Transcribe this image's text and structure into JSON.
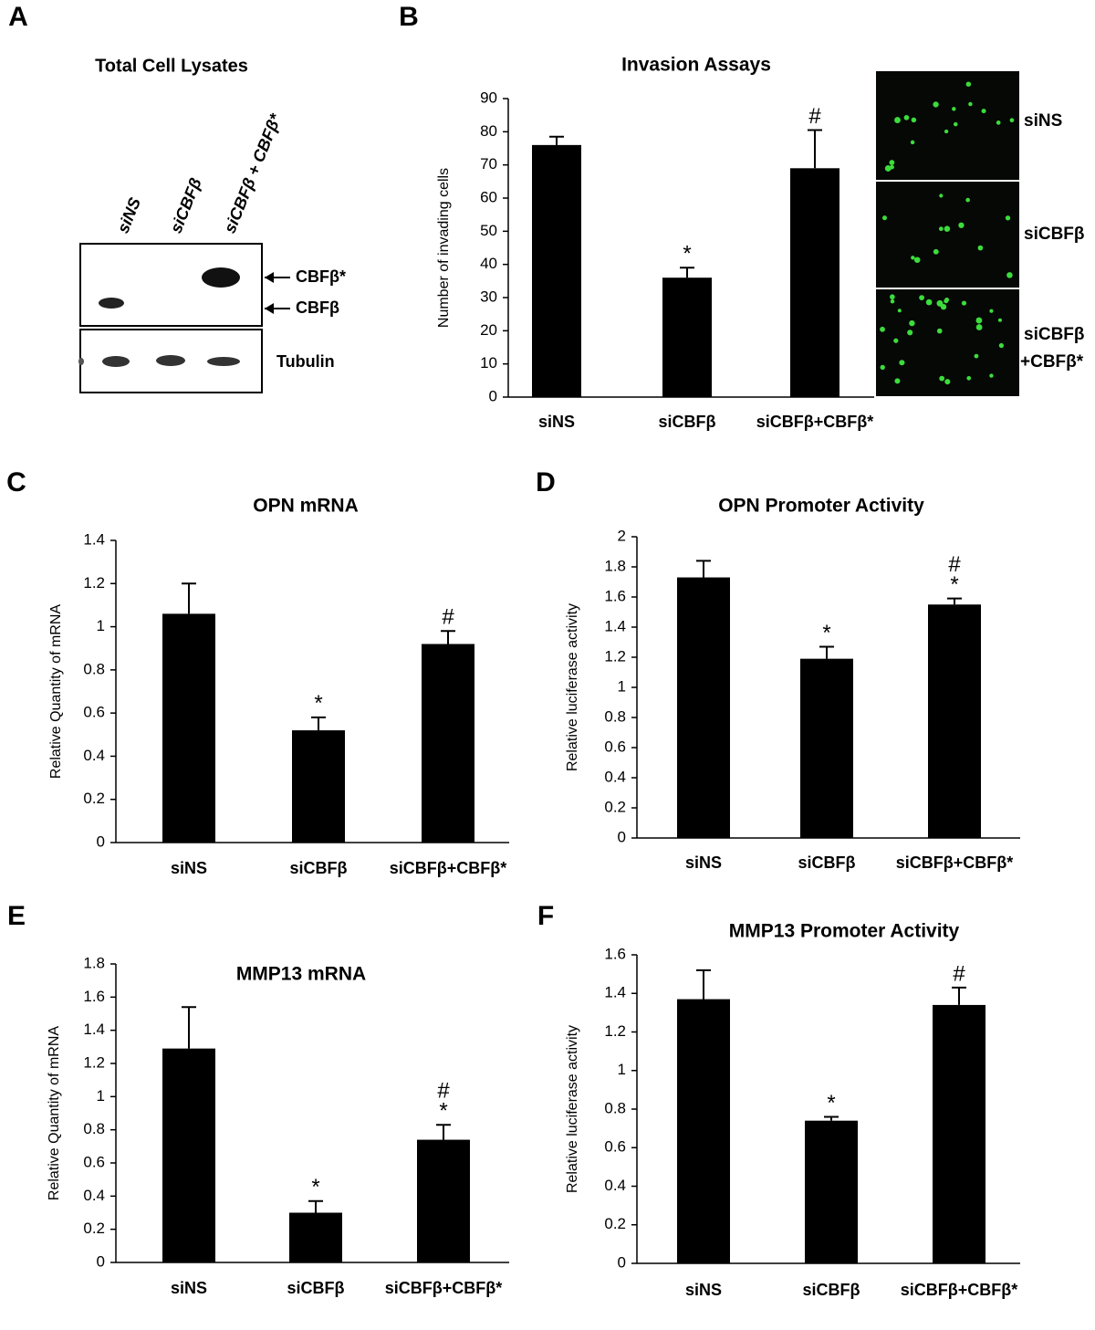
{
  "panel_labels": [
    "A",
    "B",
    "C",
    "D",
    "E",
    "F"
  ],
  "blot": {
    "title": "Total Cell Lysates",
    "lanes": [
      "siNS",
      "siCBFβ",
      "siCBFβ + CBFβ*"
    ],
    "bands": [
      "CBFβ*",
      "CBFβ"
    ],
    "loading_control": "Tubulin"
  },
  "micrographs": {
    "labels": [
      [
        "siNS"
      ],
      [
        "siCBFβ"
      ],
      [
        "siCBFβ",
        "+CBFβ*"
      ]
    ]
  },
  "chart_data": [
    {
      "type": "bar",
      "title": "Invasion Assays",
      "y_label": "Number of invading cells",
      "categories": [
        "siNS",
        "siCBFβ",
        "siCBFβ+CBFβ*"
      ],
      "values": [
        76,
        36,
        69
      ],
      "errors": [
        2.5,
        3,
        11.5
      ],
      "annotations": [
        [],
        [
          "*"
        ],
        [
          "#"
        ]
      ],
      "color": "#000000",
      "ylim": [
        0,
        90
      ],
      "yticks": [
        0,
        10,
        20,
        30,
        40,
        50,
        60,
        70,
        80,
        90
      ]
    },
    {
      "type": "bar",
      "title": "OPN mRNA",
      "y_label": "Relative Quantity of mRNA",
      "categories": [
        "siNS",
        "siCBFβ",
        "siCBFβ+CBFβ*"
      ],
      "values": [
        1.06,
        0.52,
        0.92
      ],
      "errors": [
        0.14,
        0.06,
        0.06
      ],
      "annotations": [
        [],
        [
          "*"
        ],
        [
          "#"
        ]
      ],
      "color": "#000000",
      "ylim": [
        0,
        1.4
      ],
      "yticks": [
        0,
        0.2,
        0.4,
        0.6,
        0.8,
        1,
        1.2,
        1.4
      ]
    },
    {
      "type": "bar",
      "title": "OPN Promoter Activity",
      "y_label": "Relative luciferase activity",
      "categories": [
        "siNS",
        "siCBFβ",
        "siCBFβ+CBFβ*"
      ],
      "values": [
        1.73,
        1.19,
        1.55
      ],
      "errors": [
        0.11,
        0.08,
        0.04
      ],
      "annotations": [
        [],
        [
          "*"
        ],
        [
          "#",
          "*"
        ]
      ],
      "color": "#000000",
      "ylim": [
        0,
        2
      ],
      "yticks": [
        0,
        0.2,
        0.4,
        0.6,
        0.8,
        1,
        1.2,
        1.4,
        1.6,
        1.8,
        2
      ]
    },
    {
      "type": "bar",
      "title": "MMP13 mRNA",
      "y_label": "Relative Quantity of mRNA",
      "categories": [
        "siNS",
        "siCBFβ",
        "siCBFβ+CBFβ*"
      ],
      "values": [
        1.29,
        0.3,
        0.74
      ],
      "errors": [
        0.25,
        0.07,
        0.09
      ],
      "annotations": [
        [],
        [
          "*"
        ],
        [
          "#",
          "*"
        ]
      ],
      "color": "#000000",
      "ylim": [
        0,
        1.8
      ],
      "yticks": [
        0,
        0.2,
        0.4,
        0.6,
        0.8,
        1,
        1.2,
        1.4,
        1.6,
        1.8
      ]
    },
    {
      "type": "bar",
      "title": "MMP13 Promoter Activity",
      "y_label": "Relative luciferase activity",
      "categories": [
        "siNS",
        "siCBFβ",
        "siCBFβ+CBFβ*"
      ],
      "values": [
        1.37,
        0.74,
        1.34
      ],
      "errors": [
        0.15,
        0.02,
        0.09
      ],
      "annotations": [
        [],
        [
          "*"
        ],
        [
          "#"
        ]
      ],
      "color": "#000000",
      "ylim": [
        0,
        1.6
      ],
      "yticks": [
        0,
        0.2,
        0.4,
        0.6,
        0.8,
        1,
        1.2,
        1.4,
        1.6
      ]
    }
  ]
}
